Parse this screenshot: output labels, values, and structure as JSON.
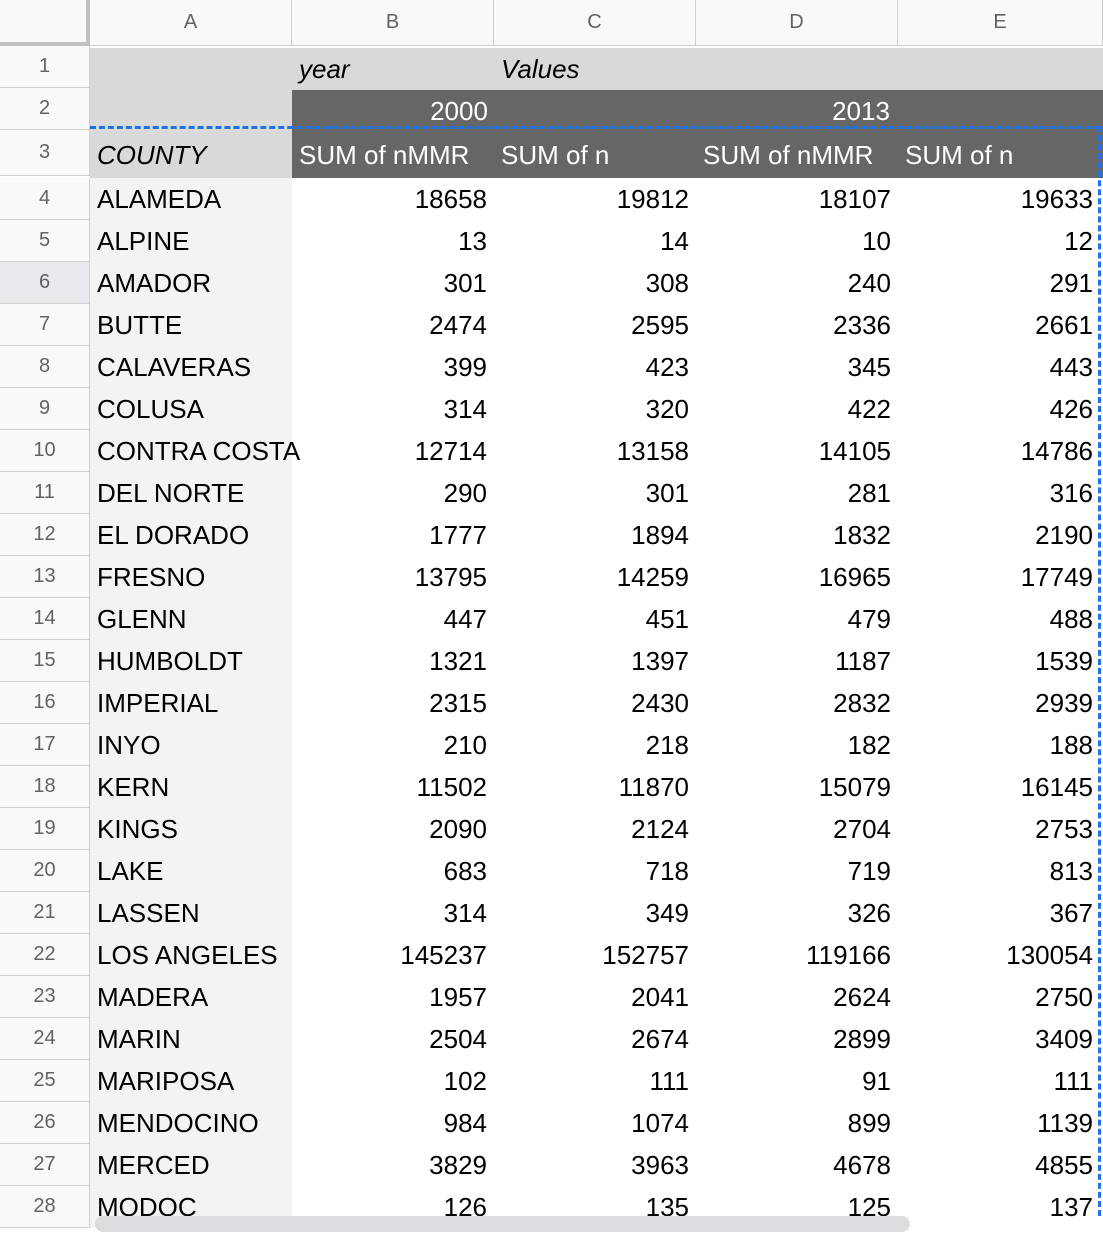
{
  "columns": [
    "A",
    "B",
    "C",
    "D",
    "E"
  ],
  "row1": {
    "b": "year",
    "c": "Values"
  },
  "row2": {
    "year_2000": "2000",
    "year_2013": "2013"
  },
  "row3": {
    "a": "COUNTY",
    "b": "SUM of nMMR",
    "c": "SUM of n",
    "d": "SUM of nMMR",
    "e": "SUM of n"
  },
  "header_rows": [
    "1",
    "2",
    "3"
  ],
  "data_rows": [
    {
      "num": "4",
      "county": "ALAMEDA",
      "b": "18658",
      "c": "19812",
      "d": "18107",
      "e": "19633"
    },
    {
      "num": "5",
      "county": "ALPINE",
      "b": "13",
      "c": "14",
      "d": "10",
      "e": "12"
    },
    {
      "num": "6",
      "county": "AMADOR",
      "b": "301",
      "c": "308",
      "d": "240",
      "e": "291"
    },
    {
      "num": "7",
      "county": "BUTTE",
      "b": "2474",
      "c": "2595",
      "d": "2336",
      "e": "2661"
    },
    {
      "num": "8",
      "county": "CALAVERAS",
      "b": "399",
      "c": "423",
      "d": "345",
      "e": "443"
    },
    {
      "num": "9",
      "county": "COLUSA",
      "b": "314",
      "c": "320",
      "d": "422",
      "e": "426"
    },
    {
      "num": "10",
      "county": "CONTRA COSTA",
      "b": "12714",
      "c": "13158",
      "d": "14105",
      "e": "14786"
    },
    {
      "num": "11",
      "county": "DEL NORTE",
      "b": "290",
      "c": "301",
      "d": "281",
      "e": "316"
    },
    {
      "num": "12",
      "county": "EL DORADO",
      "b": "1777",
      "c": "1894",
      "d": "1832",
      "e": "2190"
    },
    {
      "num": "13",
      "county": "FRESNO",
      "b": "13795",
      "c": "14259",
      "d": "16965",
      "e": "17749"
    },
    {
      "num": "14",
      "county": "GLENN",
      "b": "447",
      "c": "451",
      "d": "479",
      "e": "488"
    },
    {
      "num": "15",
      "county": "HUMBOLDT",
      "b": "1321",
      "c": "1397",
      "d": "1187",
      "e": "1539"
    },
    {
      "num": "16",
      "county": "IMPERIAL",
      "b": "2315",
      "c": "2430",
      "d": "2832",
      "e": "2939"
    },
    {
      "num": "17",
      "county": "INYO",
      "b": "210",
      "c": "218",
      "d": "182",
      "e": "188"
    },
    {
      "num": "18",
      "county": "KERN",
      "b": "11502",
      "c": "11870",
      "d": "15079",
      "e": "16145"
    },
    {
      "num": "19",
      "county": "KINGS",
      "b": "2090",
      "c": "2124",
      "d": "2704",
      "e": "2753"
    },
    {
      "num": "20",
      "county": "LAKE",
      "b": "683",
      "c": "718",
      "d": "719",
      "e": "813"
    },
    {
      "num": "21",
      "county": "LASSEN",
      "b": "314",
      "c": "349",
      "d": "326",
      "e": "367"
    },
    {
      "num": "22",
      "county": "LOS ANGELES",
      "b": "145237",
      "c": "152757",
      "d": "119166",
      "e": "130054"
    },
    {
      "num": "23",
      "county": "MADERA",
      "b": "1957",
      "c": "2041",
      "d": "2624",
      "e": "2750"
    },
    {
      "num": "24",
      "county": "MARIN",
      "b": "2504",
      "c": "2674",
      "d": "2899",
      "e": "3409"
    },
    {
      "num": "25",
      "county": "MARIPOSA",
      "b": "102",
      "c": "111",
      "d": "91",
      "e": "111"
    },
    {
      "num": "26",
      "county": "MENDOCINO",
      "b": "984",
      "c": "1074",
      "d": "899",
      "e": "1139"
    },
    {
      "num": "27",
      "county": "MERCED",
      "b": "3829",
      "c": "3963",
      "d": "4678",
      "e": "4855"
    },
    {
      "num": "28",
      "county": "MODOC",
      "b": "126",
      "c": "135",
      "d": "125",
      "e": "137"
    }
  ],
  "selected_row": "6",
  "colors": {
    "header_bar": "#666666",
    "light_bar": "#d9d9d9",
    "selection": "#1a73e8"
  }
}
